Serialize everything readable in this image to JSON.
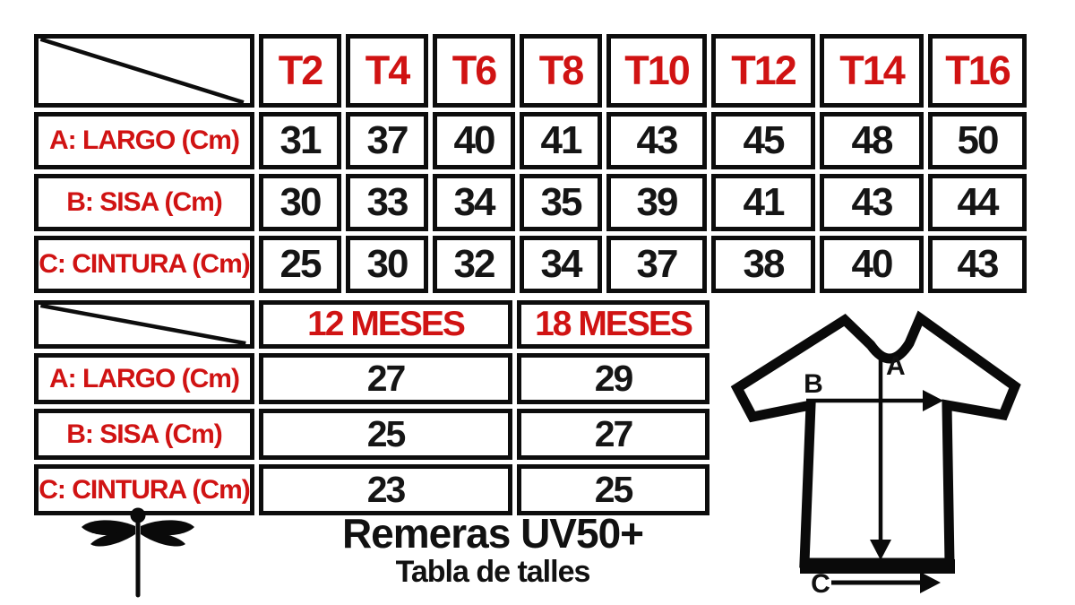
{
  "colors": {
    "accent_red": "#d01313",
    "line_black": "#0d0d0d",
    "text_black": "#151515",
    "background": "#ffffff"
  },
  "chart_data": [
    {
      "type": "table",
      "title": "Remeras UV50+ — Tabla de talles",
      "columns": [
        "T2",
        "T4",
        "T6",
        "T8",
        "T10",
        "T12",
        "T14",
        "T16"
      ],
      "rows": [
        {
          "label": "A: LARGO (Cm)",
          "values": [
            31,
            37,
            40,
            41,
            43,
            45,
            48,
            50
          ]
        },
        {
          "label": "B: SISA (Cm)",
          "values": [
            30,
            33,
            34,
            35,
            39,
            41,
            43,
            44
          ]
        },
        {
          "label": "C: CINTURA (Cm)",
          "values": [
            25,
            30,
            32,
            34,
            37,
            38,
            40,
            43
          ]
        }
      ]
    },
    {
      "type": "table",
      "title": "Remeras UV50+ — Tabla de talles",
      "columns": [
        "12 MESES",
        "18 MESES"
      ],
      "rows": [
        {
          "label": "A: LARGO (Cm)",
          "values": [
            27,
            29
          ]
        },
        {
          "label": "B: SISA (Cm)",
          "values": [
            25,
            27
          ]
        },
        {
          "label": "C: CINTURA (Cm)",
          "values": [
            23,
            25
          ]
        }
      ]
    }
  ],
  "footer": {
    "title": "Remeras UV50+",
    "subtitle": "Tabla de talles"
  },
  "diagram": {
    "a": "A",
    "b": "B",
    "c": "C"
  },
  "logo": "dragonfly"
}
